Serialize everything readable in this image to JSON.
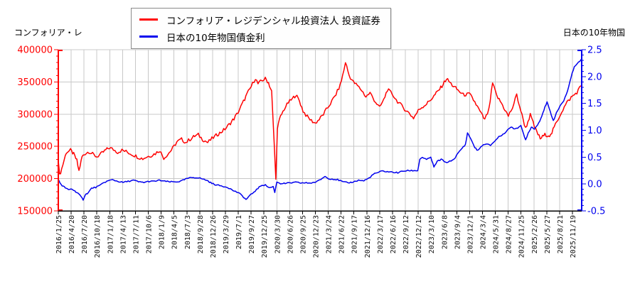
{
  "chart_data": {
    "type": "line",
    "title": "",
    "legend_position": "top-center",
    "grid": true,
    "grid_color": "#c8c8c8",
    "left_axis": {
      "title": "コンフォリア・レ",
      "min": 150000,
      "max": 400000,
      "major": 50000,
      "minor": 10000,
      "color": "#ff0000",
      "tick_labels": [
        "150000",
        "200000",
        "250000",
        "300000",
        "350000",
        "400000"
      ]
    },
    "right_axis": {
      "title": "日本の10年物国",
      "min": -0.5,
      "max": 2.5,
      "major": 0.5,
      "minor": 0.1,
      "color": "#0000ee",
      "tick_labels": [
        "-0.5",
        "0.0",
        "0.5",
        "1.0",
        "1.5",
        "2.0",
        "2.5"
      ]
    },
    "x_axis": {
      "label_color": "#111111",
      "tick_labels": [
        "2016/1/25",
        "2016/4/20",
        "2016/7/20",
        "2016/10/18",
        "2017/1/18",
        "2017/4/13",
        "2017/7/11",
        "2017/10/6",
        "2018/1/9",
        "2018/4/5",
        "2018/7/3",
        "2018/9/28",
        "2018/12/26",
        "2019/3/29",
        "2019/7/1",
        "2019/9/27",
        "2019/12/25",
        "2020/3/30",
        "2020/6/26",
        "2020/9/25",
        "2020/12/23",
        "2021/3/24",
        "2021/6/22",
        "2021/9/17",
        "2021/12/16",
        "2022/3/17",
        "2022/6/16",
        "2022/9/12",
        "2022/12/12",
        "2023/3/10",
        "2023/6/8",
        "2023/9/4",
        "2023/12/1",
        "2024/3/4",
        "2024/5/31",
        "2024/8/27",
        "2024/11/25",
        "2025/2/26",
        "2025/5/27",
        "2025/8/21",
        "2025/11/19"
      ]
    },
    "series": [
      {
        "name": "コンフォリア・レジデンシャル投資法人  投資証券",
        "color": "#ff0000",
        "axis": "left",
        "volatility": 2800,
        "points": [
          [
            2016.07,
            224000
          ],
          [
            2016.09,
            205000
          ],
          [
            2016.13,
            215000
          ],
          [
            2016.18,
            230000
          ],
          [
            2016.22,
            241000
          ],
          [
            2016.3,
            244000
          ],
          [
            2016.36,
            238000
          ],
          [
            2016.42,
            228000
          ],
          [
            2016.46,
            212000
          ],
          [
            2016.52,
            234000
          ],
          [
            2016.58,
            239000
          ],
          [
            2016.65,
            242000
          ],
          [
            2016.72,
            238000
          ],
          [
            2016.8,
            234000
          ],
          [
            2016.88,
            238000
          ],
          [
            2016.95,
            243000
          ],
          [
            2017.04,
            248000
          ],
          [
            2017.12,
            245000
          ],
          [
            2017.2,
            241000
          ],
          [
            2017.28,
            244000
          ],
          [
            2017.36,
            242000
          ],
          [
            2017.44,
            239000
          ],
          [
            2017.52,
            236000
          ],
          [
            2017.6,
            233000
          ],
          [
            2017.68,
            231000
          ],
          [
            2017.76,
            234000
          ],
          [
            2017.84,
            236000
          ],
          [
            2017.92,
            239000
          ],
          [
            2018.0,
            244000
          ],
          [
            2018.08,
            232000
          ],
          [
            2018.16,
            238000
          ],
          [
            2018.25,
            247000
          ],
          [
            2018.33,
            257000
          ],
          [
            2018.42,
            261000
          ],
          [
            2018.5,
            256000
          ],
          [
            2018.58,
            261000
          ],
          [
            2018.67,
            266000
          ],
          [
            2018.74,
            268000
          ],
          [
            2018.82,
            261000
          ],
          [
            2018.92,
            256000
          ],
          [
            2019.0,
            262000
          ],
          [
            2019.08,
            267000
          ],
          [
            2019.17,
            272000
          ],
          [
            2019.25,
            277000
          ],
          [
            2019.33,
            284000
          ],
          [
            2019.42,
            293000
          ],
          [
            2019.5,
            303000
          ],
          [
            2019.58,
            316000
          ],
          [
            2019.67,
            331000
          ],
          [
            2019.75,
            343000
          ],
          [
            2019.83,
            356000
          ],
          [
            2019.88,
            347000
          ],
          [
            2019.95,
            352000
          ],
          [
            2020.02,
            355000
          ],
          [
            2020.08,
            349000
          ],
          [
            2020.14,
            335000
          ],
          [
            2020.19,
            252000
          ],
          [
            2020.22,
            198000
          ],
          [
            2020.25,
            280000
          ],
          [
            2020.31,
            296000
          ],
          [
            2020.38,
            308000
          ],
          [
            2020.46,
            318000
          ],
          [
            2020.54,
            324000
          ],
          [
            2020.6,
            330000
          ],
          [
            2020.67,
            321000
          ],
          [
            2020.74,
            305000
          ],
          [
            2020.82,
            296000
          ],
          [
            2020.9,
            290000
          ],
          [
            2020.97,
            286000
          ],
          [
            2021.05,
            292000
          ],
          [
            2021.13,
            300000
          ],
          [
            2021.21,
            310000
          ],
          [
            2021.29,
            320000
          ],
          [
            2021.37,
            331000
          ],
          [
            2021.45,
            345000
          ],
          [
            2021.52,
            368000
          ],
          [
            2021.55,
            381000
          ],
          [
            2021.62,
            360000
          ],
          [
            2021.7,
            350000
          ],
          [
            2021.78,
            344000
          ],
          [
            2021.86,
            337000
          ],
          [
            2021.94,
            327000
          ],
          [
            2022.02,
            333000
          ],
          [
            2022.1,
            322000
          ],
          [
            2022.2,
            310000
          ],
          [
            2022.28,
            322000
          ],
          [
            2022.35,
            338000
          ],
          [
            2022.44,
            332000
          ],
          [
            2022.52,
            322000
          ],
          [
            2022.6,
            315000
          ],
          [
            2022.68,
            308000
          ],
          [
            2022.76,
            302000
          ],
          [
            2022.85,
            294000
          ],
          [
            2022.96,
            308000
          ],
          [
            2023.1,
            316000
          ],
          [
            2023.24,
            328000
          ],
          [
            2023.37,
            341000
          ],
          [
            2023.48,
            355000
          ],
          [
            2023.59,
            345000
          ],
          [
            2023.7,
            337000
          ],
          [
            2023.8,
            330000
          ],
          [
            2023.92,
            331000
          ],
          [
            2024.02,
            319000
          ],
          [
            2024.12,
            304000
          ],
          [
            2024.21,
            291000
          ],
          [
            2024.29,
            307000
          ],
          [
            2024.36,
            348000
          ],
          [
            2024.44,
            328000
          ],
          [
            2024.53,
            317000
          ],
          [
            2024.66,
            297000
          ],
          [
            2024.74,
            310000
          ],
          [
            2024.82,
            330000
          ],
          [
            2024.9,
            305000
          ],
          [
            2024.99,
            278000
          ],
          [
            2025.08,
            299000
          ],
          [
            2025.16,
            280000
          ],
          [
            2025.27,
            262000
          ],
          [
            2025.36,
            268000
          ],
          [
            2025.47,
            267000
          ],
          [
            2025.56,
            284000
          ],
          [
            2025.68,
            304000
          ],
          [
            2025.78,
            318000
          ],
          [
            2025.86,
            326000
          ],
          [
            2025.92,
            330000
          ],
          [
            2025.97,
            334000
          ],
          [
            2026.05,
            344000
          ]
        ]
      },
      {
        "name": "日本の10年物国債金利",
        "color": "#0000ee",
        "axis": "right",
        "volatility": 0.012,
        "points": [
          [
            2016.07,
            0.08
          ],
          [
            2016.1,
            0.02
          ],
          [
            2016.14,
            -0.03
          ],
          [
            2016.2,
            -0.07
          ],
          [
            2016.26,
            -0.11
          ],
          [
            2016.32,
            -0.09
          ],
          [
            2016.38,
            -0.13
          ],
          [
            2016.44,
            -0.17
          ],
          [
            2016.5,
            -0.24
          ],
          [
            2016.54,
            -0.29
          ],
          [
            2016.58,
            -0.2
          ],
          [
            2016.64,
            -0.16
          ],
          [
            2016.7,
            -0.08
          ],
          [
            2016.78,
            -0.06
          ],
          [
            2016.86,
            -0.03
          ],
          [
            2016.94,
            0.03
          ],
          [
            2017.02,
            0.06
          ],
          [
            2017.1,
            0.08
          ],
          [
            2017.2,
            0.05
          ],
          [
            2017.3,
            0.03
          ],
          [
            2017.4,
            0.05
          ],
          [
            2017.5,
            0.07
          ],
          [
            2017.6,
            0.04
          ],
          [
            2017.7,
            0.03
          ],
          [
            2017.8,
            0.05
          ],
          [
            2017.9,
            0.05
          ],
          [
            2018.0,
            0.07
          ],
          [
            2018.1,
            0.05
          ],
          [
            2018.2,
            0.04
          ],
          [
            2018.3,
            0.04
          ],
          [
            2018.4,
            0.05
          ],
          [
            2018.52,
            0.1
          ],
          [
            2018.62,
            0.12
          ],
          [
            2018.72,
            0.12
          ],
          [
            2018.8,
            0.1
          ],
          [
            2018.9,
            0.07
          ],
          [
            2019.0,
            0.01
          ],
          [
            2019.1,
            -0.02
          ],
          [
            2019.2,
            -0.04
          ],
          [
            2019.3,
            -0.06
          ],
          [
            2019.4,
            -0.12
          ],
          [
            2019.5,
            -0.16
          ],
          [
            2019.58,
            -0.22
          ],
          [
            2019.65,
            -0.29
          ],
          [
            2019.72,
            -0.22
          ],
          [
            2019.8,
            -0.15
          ],
          [
            2019.88,
            -0.08
          ],
          [
            2019.95,
            -0.02
          ],
          [
            2020.02,
            -0.02
          ],
          [
            2020.1,
            -0.07
          ],
          [
            2020.17,
            -0.05
          ],
          [
            2020.2,
            -0.15
          ],
          [
            2020.24,
            0.04
          ],
          [
            2020.31,
            0.01
          ],
          [
            2020.4,
            0.01
          ],
          [
            2020.5,
            0.02
          ],
          [
            2020.6,
            0.03
          ],
          [
            2020.7,
            0.02
          ],
          [
            2020.8,
            0.02
          ],
          [
            2020.9,
            0.02
          ],
          [
            2021.0,
            0.04
          ],
          [
            2021.08,
            0.09
          ],
          [
            2021.16,
            0.14
          ],
          [
            2021.24,
            0.1
          ],
          [
            2021.32,
            0.09
          ],
          [
            2021.4,
            0.08
          ],
          [
            2021.5,
            0.04
          ],
          [
            2021.6,
            0.02
          ],
          [
            2021.7,
            0.04
          ],
          [
            2021.8,
            0.07
          ],
          [
            2021.9,
            0.06
          ],
          [
            2022.0,
            0.11
          ],
          [
            2022.08,
            0.18
          ],
          [
            2022.16,
            0.21
          ],
          [
            2022.25,
            0.24
          ],
          [
            2022.35,
            0.23
          ],
          [
            2022.45,
            0.22
          ],
          [
            2022.55,
            0.21
          ],
          [
            2022.65,
            0.24
          ],
          [
            2022.76,
            0.25
          ],
          [
            2022.86,
            0.25
          ],
          [
            2022.93,
            0.25
          ],
          [
            2022.97,
            0.46
          ],
          [
            2023.02,
            0.5
          ],
          [
            2023.1,
            0.45
          ],
          [
            2023.18,
            0.5
          ],
          [
            2023.24,
            0.31
          ],
          [
            2023.3,
            0.42
          ],
          [
            2023.38,
            0.46
          ],
          [
            2023.46,
            0.4
          ],
          [
            2023.54,
            0.42
          ],
          [
            2023.62,
            0.46
          ],
          [
            2023.7,
            0.57
          ],
          [
            2023.78,
            0.67
          ],
          [
            2023.84,
            0.73
          ],
          [
            2023.88,
            0.95
          ],
          [
            2023.94,
            0.85
          ],
          [
            2024.02,
            0.68
          ],
          [
            2024.08,
            0.62
          ],
          [
            2024.16,
            0.72
          ],
          [
            2024.24,
            0.74
          ],
          [
            2024.32,
            0.72
          ],
          [
            2024.4,
            0.8
          ],
          [
            2024.48,
            0.88
          ],
          [
            2024.56,
            0.92
          ],
          [
            2024.64,
            1.0
          ],
          [
            2024.7,
            1.06
          ],
          [
            2024.76,
            1.03
          ],
          [
            2024.84,
            1.05
          ],
          [
            2024.9,
            1.08
          ],
          [
            2024.95,
            0.93
          ],
          [
            2024.99,
            0.82
          ],
          [
            2025.04,
            0.95
          ],
          [
            2025.1,
            1.06
          ],
          [
            2025.16,
            1.03
          ],
          [
            2025.22,
            1.1
          ],
          [
            2025.28,
            1.22
          ],
          [
            2025.34,
            1.38
          ],
          [
            2025.4,
            1.52
          ],
          [
            2025.46,
            1.35
          ],
          [
            2025.52,
            1.18
          ],
          [
            2025.58,
            1.32
          ],
          [
            2025.65,
            1.46
          ],
          [
            2025.72,
            1.55
          ],
          [
            2025.79,
            1.72
          ],
          [
            2025.86,
            2.0
          ],
          [
            2025.92,
            2.18
          ],
          [
            2026.0,
            2.26
          ],
          [
            2026.05,
            2.32
          ]
        ]
      }
    ]
  }
}
